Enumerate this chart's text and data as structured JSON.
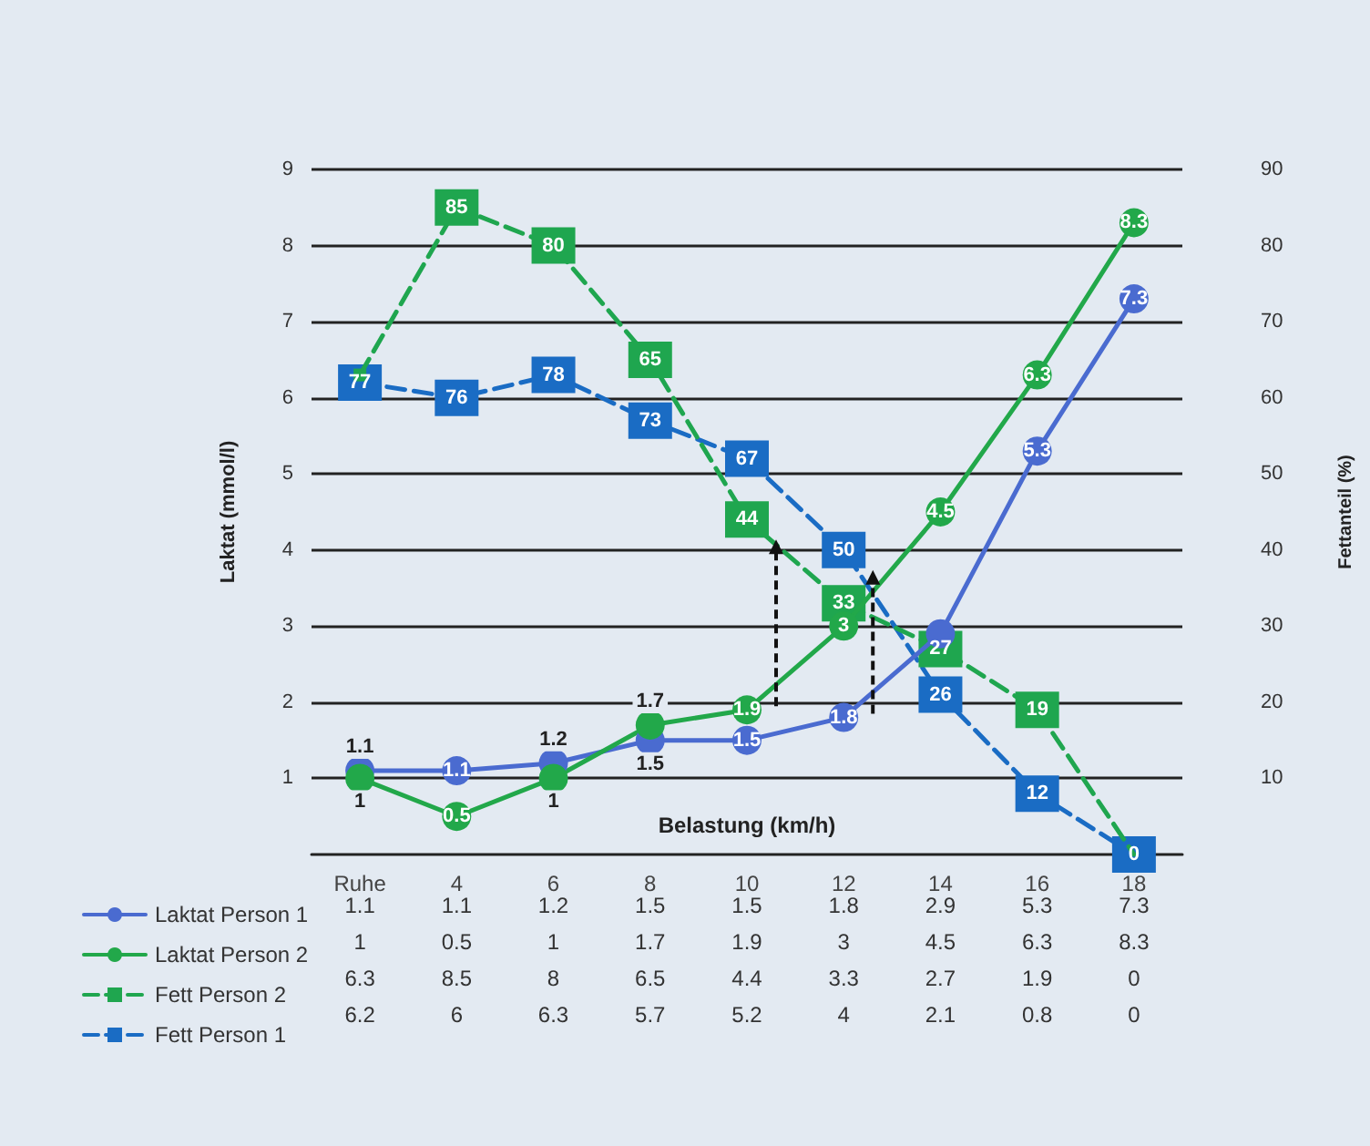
{
  "chart_data": {
    "type": "line",
    "xlabel": "Belastung (km/h)",
    "ylabel": "Laktat (mmol/l)",
    "y2label": "Fettanteil (%)",
    "categories": [
      "Ruhe",
      "4",
      "6",
      "8",
      "10",
      "12",
      "14",
      "16",
      "18"
    ],
    "ylim": [
      0,
      9
    ],
    "yticks": [
      1,
      2,
      3,
      4,
      5,
      6,
      7,
      8,
      9
    ],
    "y2lim": [
      0,
      90
    ],
    "y2ticks": [
      10,
      20,
      30,
      40,
      50,
      60,
      70,
      80,
      90
    ],
    "grid": "y",
    "legend": "bottom left",
    "data_labels": true,
    "series": [
      {
        "name": "Laktat Person 1",
        "color": "#4a6bd0",
        "marker": "circle",
        "line_style": "solid",
        "values": [
          1.1,
          1.1,
          1.2,
          1.5,
          1.5,
          1.8,
          2.9,
          5.3,
          7.3
        ]
      },
      {
        "name": "Laktat Person 2",
        "color": "#22a84a",
        "marker": "circle",
        "line_style": "solid",
        "values": [
          1,
          0.5,
          1,
          1.7,
          1.9,
          3,
          4.5,
          6.3,
          8.3
        ]
      },
      {
        "name": "Fett Person 2",
        "color": "#1fa64f",
        "marker": "square",
        "line_style": "dashed",
        "values": [
          6.3,
          8.5,
          8,
          6.5,
          4.4,
          3.3,
          2.7,
          1.9,
          0
        ]
      },
      {
        "name": "Fett Person 1",
        "color": "#1a6cc4",
        "marker": "square",
        "line_style": "dashed",
        "values": [
          6.2,
          6,
          6.3,
          5.7,
          5.2,
          4,
          2.1,
          0.8,
          0
        ]
      }
    ],
    "annotations": [
      {
        "text": "1.1",
        "x": "Ruhe",
        "y": 1.1
      },
      {
        "text": "1.1",
        "x": "4",
        "y": 1.1
      },
      {
        "text": "1.2",
        "x": "6",
        "y": 1.2
      },
      {
        "text": "1.5",
        "x": "8",
        "y": 1.5
      },
      {
        "text": "1.5",
        "x": "10",
        "y": 1.5
      },
      {
        "text": "1.8",
        "x": "12",
        "y": 1.8
      },
      {
        "text": "5.3",
        "x": "16",
        "y": 5.3
      },
      {
        "text": "7.3",
        "x": "18",
        "y": 7.3
      },
      {
        "text": "1",
        "x": "Ruhe",
        "y": 1
      },
      {
        "text": "0.5",
        "x": "4",
        "y": 0.5
      },
      {
        "text": "1",
        "x": "6",
        "y": 1
      },
      {
        "text": "1.7",
        "x": "8",
        "y": 1.7
      },
      {
        "text": "1.9",
        "x": "10",
        "y": 1.9
      },
      {
        "text": "3",
        "x": "12",
        "y": 3
      },
      {
        "text": "4.5",
        "x": "14",
        "y": 4.5
      },
      {
        "text": "6.3",
        "x": "16",
        "y": 6.3
      },
      {
        "text": "8.3",
        "x": "18",
        "y": 8.3
      },
      {
        "text": "85",
        "x": "4",
        "y": 8.5
      },
      {
        "text": "80",
        "x": "6",
        "y": 8
      },
      {
        "text": "65",
        "x": "8",
        "y": 6.5
      },
      {
        "text": "44",
        "x": "10",
        "y": 4.4
      },
      {
        "text": "33",
        "x": "12",
        "y": 3.3
      },
      {
        "text": "27",
        "x": "14",
        "y": 2.7
      },
      {
        "text": "19",
        "x": "16",
        "y": 1.9
      },
      {
        "text": "77",
        "x": "Ruhe",
        "y": 6.2
      },
      {
        "text": "76",
        "x": "4",
        "y": 6
      },
      {
        "text": "78",
        "x": "6",
        "y": 6.3
      },
      {
        "text": "73",
        "x": "8",
        "y": 5.7
      },
      {
        "text": "67",
        "x": "10",
        "y": 5.2
      },
      {
        "text": "50",
        "x": "12",
        "y": 4
      },
      {
        "text": "26",
        "x": "14",
        "y": 2.1
      },
      {
        "text": "12",
        "x": "16",
        "y": 0.8
      },
      {
        "text": "0",
        "x": "18",
        "y": 0
      }
    ]
  }
}
